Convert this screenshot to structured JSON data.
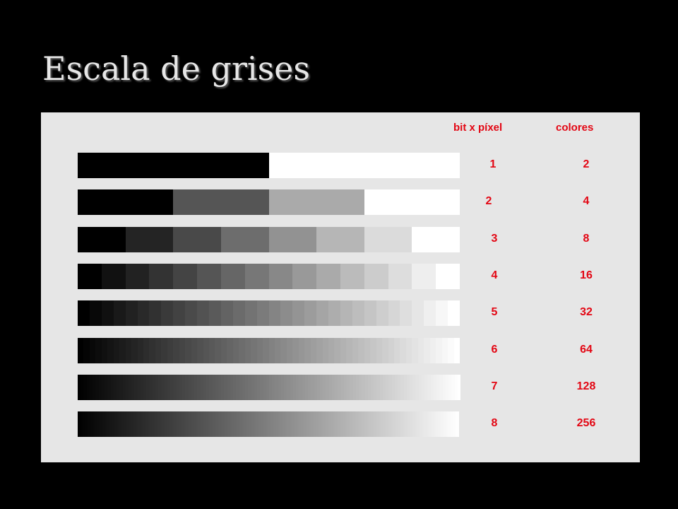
{
  "title": "Escala de grises",
  "headers": {
    "bits_per_pixel": "bit x píxel",
    "colors": "colores"
  },
  "accent_color": "#e30613",
  "rows": [
    {
      "bits": "1",
      "colors": "2",
      "levels": 2
    },
    {
      "bits": "2",
      "colors": "4",
      "levels": 4
    },
    {
      "bits": "3",
      "colors": "8",
      "levels": 8
    },
    {
      "bits": "4",
      "colors": "16",
      "levels": 16
    },
    {
      "bits": "5",
      "colors": "32",
      "levels": 32
    },
    {
      "bits": "6",
      "colors": "64",
      "levels": 64
    },
    {
      "bits": "7",
      "colors": "128",
      "levels": 128
    },
    {
      "bits": "8",
      "colors": "256",
      "levels": 256
    }
  ]
}
